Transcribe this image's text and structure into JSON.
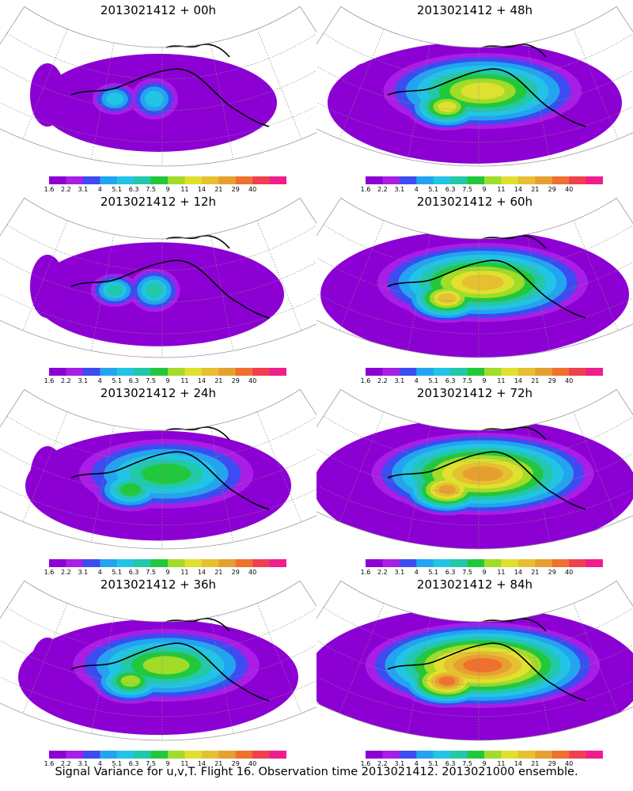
{
  "colors": {
    "levels": [
      "#8c00d4",
      "#a81ee6",
      "#3c4cf0",
      "#22a4f0",
      "#22c4e6",
      "#22c8a8",
      "#22c83c",
      "#a0dc28",
      "#e0e030",
      "#e6c030",
      "#e6a030",
      "#f07030",
      "#f04050",
      "#f01e8c"
    ]
  },
  "colorbar": {
    "labels": [
      "1.6",
      "2.2",
      "3.1",
      "4",
      "5.1",
      "6.3",
      "7.5",
      "9",
      "11",
      "14",
      "21",
      "29",
      "40"
    ]
  },
  "panels": [
    {
      "title": "2013021412  +  00h",
      "intensity": 0
    },
    {
      "title": "2013021412  +  48h",
      "intensity": 4
    },
    {
      "title": "2013021412  +  12h",
      "intensity": 1
    },
    {
      "title": "2013021412  +  60h",
      "intensity": 5
    },
    {
      "title": "2013021412  +  24h",
      "intensity": 2
    },
    {
      "title": "2013021412  +  72h",
      "intensity": 6
    },
    {
      "title": "2013021412  +  36h",
      "intensity": 3
    },
    {
      "title": "2013021412  +  84h",
      "intensity": 7
    }
  ],
  "caption": "Signal Variance for u,v,T.  Flight 16.  Observation time 2013021412.  2013021000 ensemble."
}
